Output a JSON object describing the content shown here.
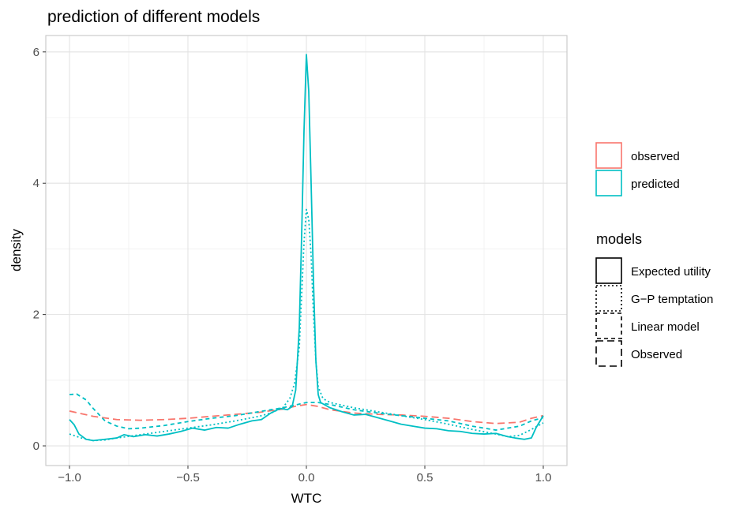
{
  "chart_data": {
    "type": "line",
    "title": "prediction of different models",
    "xlabel": "WTC",
    "ylabel": "density",
    "xlim": [
      -1.1,
      1.1
    ],
    "ylim": [
      -0.3,
      6.25
    ],
    "x_ticks": [
      -1.0,
      -0.5,
      0.0,
      0.5,
      1.0
    ],
    "x_tick_labels": [
      "−1.0",
      "−0.5",
      "0.0",
      "0.5",
      "1.0"
    ],
    "y_ticks": [
      0,
      2,
      4,
      6
    ],
    "y_tick_labels": [
      "0",
      "2",
      "4",
      "6"
    ],
    "grid": true,
    "legend_position": "right",
    "legend_color": {
      "entries": [
        {
          "label": "observed",
          "color": "#F8766D"
        },
        {
          "label": "predicted",
          "color": "#00BFC4"
        }
      ]
    },
    "legend_linetype": {
      "title": "models",
      "entries": [
        {
          "label": "Expected utility",
          "linetype": "solid"
        },
        {
          "label": "G−P temptation",
          "linetype": "dotted"
        },
        {
          "label": "Linear model",
          "linetype": "dashed"
        },
        {
          "label": "Observed",
          "linetype": "longdash"
        }
      ]
    },
    "series": [
      {
        "name": "Observed",
        "color": "#F8766D",
        "linetype": "longdash",
        "points": [
          [
            -1.0,
            0.53
          ],
          [
            -0.9,
            0.45
          ],
          [
            -0.8,
            0.4
          ],
          [
            -0.7,
            0.39
          ],
          [
            -0.6,
            0.4
          ],
          [
            -0.5,
            0.42
          ],
          [
            -0.4,
            0.45
          ],
          [
            -0.3,
            0.48
          ],
          [
            -0.2,
            0.51
          ],
          [
            -0.1,
            0.56
          ],
          [
            -0.05,
            0.6
          ],
          [
            0.0,
            0.63
          ],
          [
            0.05,
            0.6
          ],
          [
            0.1,
            0.55
          ],
          [
            0.2,
            0.5
          ],
          [
            0.3,
            0.48
          ],
          [
            0.4,
            0.47
          ],
          [
            0.5,
            0.45
          ],
          [
            0.6,
            0.42
          ],
          [
            0.7,
            0.37
          ],
          [
            0.8,
            0.34
          ],
          [
            0.9,
            0.36
          ],
          [
            0.95,
            0.42
          ],
          [
            1.0,
            0.46
          ]
        ]
      },
      {
        "name": "Linear model",
        "color": "#00BFC4",
        "linetype": "dashed",
        "points": [
          [
            -1.0,
            0.78
          ],
          [
            -0.97,
            0.79
          ],
          [
            -0.93,
            0.7
          ],
          [
            -0.9,
            0.57
          ],
          [
            -0.85,
            0.38
          ],
          [
            -0.8,
            0.3
          ],
          [
            -0.75,
            0.26
          ],
          [
            -0.7,
            0.27
          ],
          [
            -0.6,
            0.31
          ],
          [
            -0.5,
            0.37
          ],
          [
            -0.4,
            0.42
          ],
          [
            -0.3,
            0.46
          ],
          [
            -0.2,
            0.52
          ],
          [
            -0.1,
            0.58
          ],
          [
            -0.05,
            0.62
          ],
          [
            0.0,
            0.66
          ],
          [
            0.05,
            0.66
          ],
          [
            0.1,
            0.63
          ],
          [
            0.2,
            0.55
          ],
          [
            0.3,
            0.5
          ],
          [
            0.4,
            0.46
          ],
          [
            0.5,
            0.42
          ],
          [
            0.6,
            0.38
          ],
          [
            0.7,
            0.3
          ],
          [
            0.8,
            0.24
          ],
          [
            0.9,
            0.3
          ],
          [
            0.95,
            0.38
          ],
          [
            1.0,
            0.43
          ]
        ]
      },
      {
        "name": "G−P temptation",
        "color": "#00BFC4",
        "linetype": "dotted",
        "points": [
          [
            -1.0,
            0.18
          ],
          [
            -0.95,
            0.12
          ],
          [
            -0.9,
            0.08
          ],
          [
            -0.85,
            0.09
          ],
          [
            -0.8,
            0.12
          ],
          [
            -0.7,
            0.17
          ],
          [
            -0.6,
            0.22
          ],
          [
            -0.5,
            0.27
          ],
          [
            -0.4,
            0.32
          ],
          [
            -0.3,
            0.38
          ],
          [
            -0.2,
            0.45
          ],
          [
            -0.15,
            0.5
          ],
          [
            -0.1,
            0.58
          ],
          [
            -0.07,
            0.72
          ],
          [
            -0.05,
            0.95
          ],
          [
            -0.03,
            1.5
          ],
          [
            -0.02,
            2.3
          ],
          [
            -0.01,
            3.1
          ],
          [
            0.0,
            3.6
          ],
          [
            0.01,
            3.45
          ],
          [
            0.02,
            2.9
          ],
          [
            0.03,
            2.0
          ],
          [
            0.04,
            1.3
          ],
          [
            0.05,
            0.9
          ],
          [
            0.07,
            0.72
          ],
          [
            0.1,
            0.66
          ],
          [
            0.2,
            0.58
          ],
          [
            0.3,
            0.52
          ],
          [
            0.4,
            0.46
          ],
          [
            0.5,
            0.4
          ],
          [
            0.6,
            0.33
          ],
          [
            0.7,
            0.25
          ],
          [
            0.8,
            0.18
          ],
          [
            0.85,
            0.14
          ],
          [
            0.9,
            0.16
          ],
          [
            0.95,
            0.25
          ],
          [
            1.0,
            0.35
          ]
        ]
      },
      {
        "name": "Expected utility",
        "color": "#00BFC4",
        "linetype": "solid",
        "points": [
          [
            -1.0,
            0.4
          ],
          [
            -0.98,
            0.32
          ],
          [
            -0.96,
            0.18
          ],
          [
            -0.93,
            0.1
          ],
          [
            -0.9,
            0.08
          ],
          [
            -0.85,
            0.1
          ],
          [
            -0.8,
            0.12
          ],
          [
            -0.77,
            0.17
          ],
          [
            -0.73,
            0.14
          ],
          [
            -0.68,
            0.17
          ],
          [
            -0.63,
            0.15
          ],
          [
            -0.58,
            0.18
          ],
          [
            -0.53,
            0.22
          ],
          [
            -0.48,
            0.27
          ],
          [
            -0.43,
            0.24
          ],
          [
            -0.38,
            0.28
          ],
          [
            -0.33,
            0.27
          ],
          [
            -0.28,
            0.33
          ],
          [
            -0.23,
            0.38
          ],
          [
            -0.19,
            0.4
          ],
          [
            -0.15,
            0.5
          ],
          [
            -0.11,
            0.57
          ],
          [
            -0.08,
            0.55
          ],
          [
            -0.06,
            0.6
          ],
          [
            -0.045,
            0.85
          ],
          [
            -0.03,
            1.8
          ],
          [
            -0.02,
            3.2
          ],
          [
            -0.01,
            4.8
          ],
          [
            0.0,
            5.96
          ],
          [
            0.01,
            5.4
          ],
          [
            0.02,
            4.0
          ],
          [
            0.03,
            2.5
          ],
          [
            0.04,
            1.3
          ],
          [
            0.05,
            0.78
          ],
          [
            0.06,
            0.66
          ],
          [
            0.1,
            0.58
          ],
          [
            0.15,
            0.52
          ],
          [
            0.2,
            0.47
          ],
          [
            0.25,
            0.48
          ],
          [
            0.3,
            0.43
          ],
          [
            0.35,
            0.38
          ],
          [
            0.4,
            0.33
          ],
          [
            0.45,
            0.3
          ],
          [
            0.5,
            0.27
          ],
          [
            0.55,
            0.26
          ],
          [
            0.6,
            0.23
          ],
          [
            0.65,
            0.22
          ],
          [
            0.7,
            0.19
          ],
          [
            0.75,
            0.18
          ],
          [
            0.8,
            0.19
          ],
          [
            0.85,
            0.14
          ],
          [
            0.88,
            0.12
          ],
          [
            0.92,
            0.1
          ],
          [
            0.95,
            0.12
          ],
          [
            0.97,
            0.28
          ],
          [
            1.0,
            0.46
          ]
        ]
      }
    ]
  }
}
